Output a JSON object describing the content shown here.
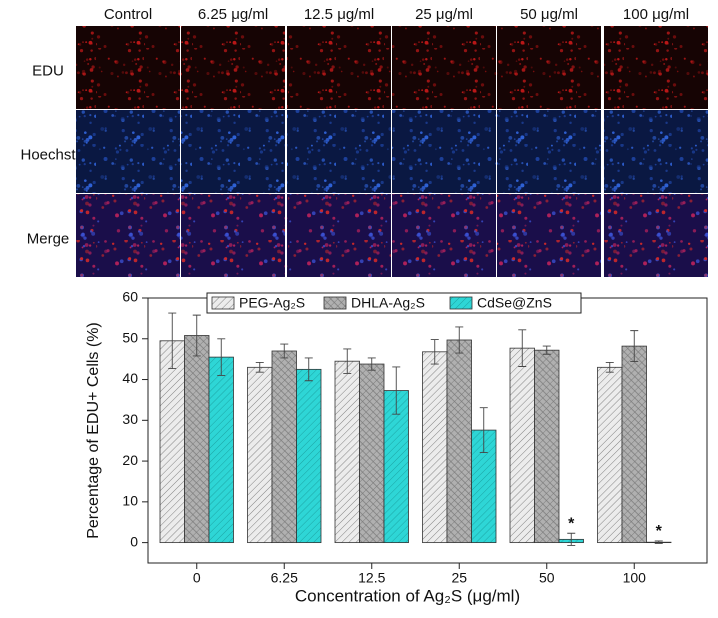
{
  "image_panel": {
    "columns": [
      "Control",
      "6.25 μg/ml",
      "12.5 μg/ml",
      "25 μg/ml",
      "50 μg/ml",
      "100 μg/ml"
    ],
    "rows": [
      "EDU",
      "Hoechst",
      "Merge"
    ]
  },
  "chart_data": {
    "type": "bar",
    "x_label": "Concentration of Ag₂S (μg/ml)",
    "y_label": "Percentage of EDU+ Cells (%)",
    "categories": [
      "0",
      "6.25",
      "12.5",
      "25",
      "50",
      "100"
    ],
    "series": [
      {
        "name": "PEG-Ag₂S",
        "color": "#ececec",
        "values": [
          49.5,
          43,
          44.5,
          46.8,
          47.7,
          43
        ],
        "errors": [
          6.8,
          1.2,
          3,
          3,
          4.5,
          1.2
        ]
      },
      {
        "name": "DHLA-Ag₂S",
        "color": "#b0b0b0",
        "values": [
          50.8,
          47,
          43.8,
          49.7,
          47.2,
          48.2
        ],
        "errors": [
          5,
          1.7,
          1.5,
          3.2,
          1,
          3.8
        ]
      },
      {
        "name": "CdSe@ZnS",
        "color": "#2ed6d6",
        "values": [
          45.5,
          42.5,
          37.3,
          27.6,
          0.8,
          0.1
        ],
        "errors": [
          4.5,
          2.8,
          5.8,
          5.5,
          1.5,
          0.3
        ]
      }
    ],
    "annotations": [
      {
        "text": "*",
        "category": "50"
      },
      {
        "text": "*",
        "category": "100"
      }
    ],
    "ylim": [
      -5,
      60
    ],
    "yticks": [
      0,
      10,
      20,
      30,
      40,
      50,
      60
    ],
    "legend": "top"
  }
}
